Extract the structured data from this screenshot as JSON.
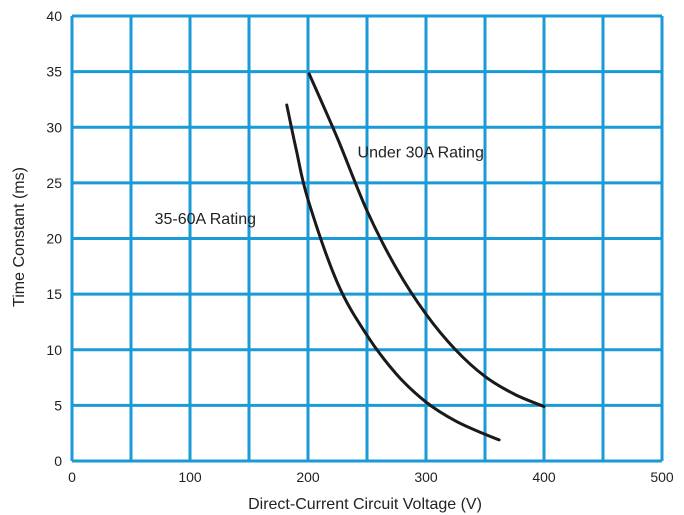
{
  "chart_data": {
    "type": "line",
    "xlabel": "Direct-Current Circuit Voltage (V)",
    "ylabel": "Time Constant (ms)",
    "xlim": [
      0,
      500
    ],
    "ylim": [
      0,
      40
    ],
    "x_ticks": [
      0,
      100,
      200,
      300,
      400,
      500
    ],
    "y_ticks": [
      0,
      5,
      10,
      15,
      20,
      25,
      30,
      35,
      40
    ],
    "x_minor_step": 50,
    "y_minor_step": 5,
    "grid": true,
    "colors": {
      "grid": "#1a9ad6",
      "series": "#1a1a1a",
      "text": "#222222"
    },
    "series": [
      {
        "name": "Under 30A Rating",
        "points": [
          [
            201,
            34.8
          ],
          [
            225,
            29.0
          ],
          [
            250,
            22.5
          ],
          [
            275,
            17.3
          ],
          [
            300,
            13.2
          ],
          [
            325,
            10.0
          ],
          [
            350,
            7.6
          ],
          [
            375,
            6.0
          ],
          [
            400,
            4.9
          ]
        ]
      },
      {
        "name": "35-60A Rating",
        "points": [
          [
            182,
            32.0
          ],
          [
            190,
            28.0
          ],
          [
            200,
            23.5
          ],
          [
            225,
            16.0
          ],
          [
            250,
            11.3
          ],
          [
            275,
            7.8
          ],
          [
            300,
            5.3
          ],
          [
            325,
            3.6
          ],
          [
            350,
            2.4
          ],
          [
            362,
            1.9
          ]
        ]
      }
    ],
    "annotations": [
      {
        "text": "Under 30A Rating",
        "x": 242,
        "y": 27.3
      },
      {
        "text": "35-60A Rating",
        "x": 70,
        "y": 21.3
      }
    ]
  }
}
